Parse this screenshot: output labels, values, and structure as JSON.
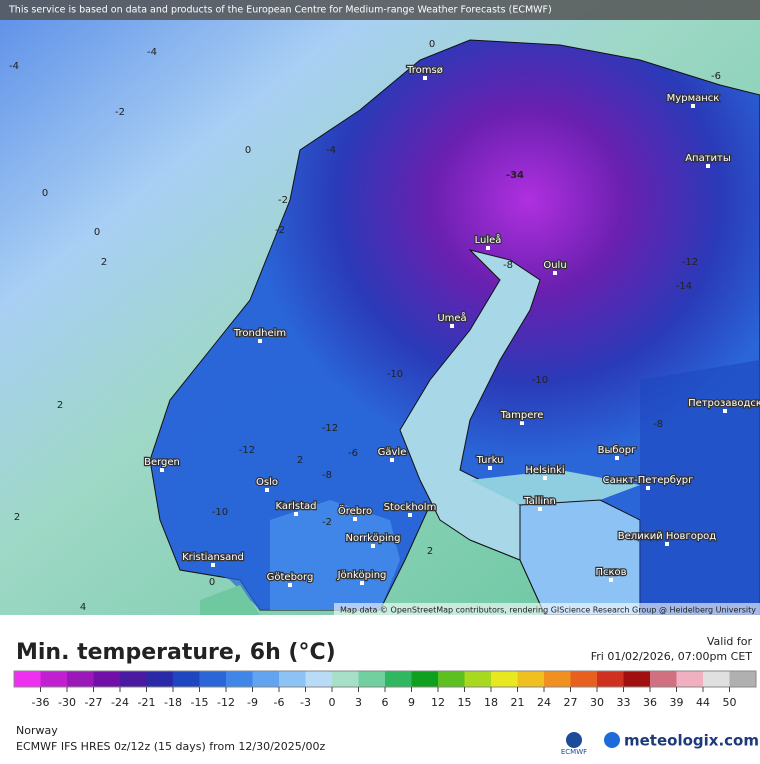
{
  "banner": "This service is based on data and products of the European Centre for Medium-range Weather Forecasts (ECMWF)",
  "attribution": "Map data © OpenStreetMap contributors, rendering GIScience Research Group @ Heidelberg University",
  "cities": [
    "Tromsø",
    "Мурманск",
    "Апатиты",
    "Luleå",
    "Oulu",
    "Trondheim",
    "Umeå",
    "Tampere",
    "Петрозаводск",
    "Bergen",
    "Gävle",
    "Turku",
    "Helsinki",
    "Выборг",
    "Oslo",
    "Karlstad",
    "Örebro",
    "Stockholm",
    "Tallinn",
    "Санкт-Петербург",
    "Norrköping",
    "Великий Новгород",
    "Kristiansand",
    "Göteborg",
    "Jönköping",
    "Псков"
  ],
  "contour_labels": [
    -4,
    -4,
    -2,
    -2,
    0,
    0,
    0,
    2,
    2,
    2,
    -2,
    -34,
    -8,
    -10,
    -12,
    -8,
    -6,
    -10,
    -12,
    4,
    2,
    2,
    0,
    -2,
    -14,
    -12,
    -8,
    -10,
    -6,
    0,
    -4
  ],
  "legend": {
    "title": "Min. temperature, 6h (°C)",
    "valid_label": "Valid for",
    "valid_time": "Fri 01/02/2026, 07:00pm CET",
    "ticks": [
      -36,
      -30,
      -27,
      -24,
      -21,
      -18,
      -15,
      -12,
      -9,
      -6,
      -3,
      0,
      3,
      6,
      9,
      12,
      15,
      18,
      21,
      24,
      27,
      30,
      33,
      36,
      39,
      44,
      50
    ],
    "colors": [
      "#f030f0",
      "#c020d0",
      "#9a18b8",
      "#7010a8",
      "#4a1aa0",
      "#2a2aa8",
      "#1e46c0",
      "#2a66d8",
      "#3f86e8",
      "#62a4f0",
      "#8cc2f4",
      "#b8dcf6",
      "#a6e0c8",
      "#70d0a0",
      "#30b860",
      "#10a020",
      "#5cc020",
      "#a8d820",
      "#e8e820",
      "#f0c020",
      "#f09020",
      "#e86020",
      "#d03020",
      "#a01010",
      "#d07080",
      "#f0b0c0",
      "#e0e0e0",
      "#b0b0b0"
    ]
  },
  "footer": {
    "region": "Norway",
    "model": "ECMWF IFS HRES 0z/12z (15 days) from 12/30/2025/00z",
    "ecmwf_logo": "ECMWF",
    "brand": "meteologix.com"
  }
}
